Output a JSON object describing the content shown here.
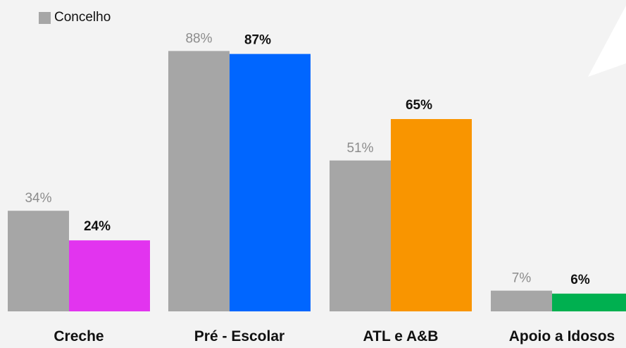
{
  "chart_data": {
    "type": "bar",
    "categories": [
      "Creche",
      "Pré - Escolar",
      "ATL e A&B",
      "Apoio a Idosos"
    ],
    "series": [
      {
        "name": "Concelho",
        "values": [
          34,
          88,
          51,
          7
        ],
        "labels": [
          "34%",
          "88%",
          "51%",
          "7%"
        ],
        "color": "#a6a6a6"
      },
      {
        "values": [
          24,
          87,
          65,
          6
        ],
        "labels": [
          "24%",
          "87%",
          "65%",
          "6%"
        ],
        "colors": [
          "#e234ef",
          "#0066ff",
          "#f99500",
          "#00b050"
        ]
      }
    ],
    "ylim": [
      0,
      100
    ],
    "grid": false,
    "legend_position": "top-left",
    "background": "#f3f3f3"
  }
}
